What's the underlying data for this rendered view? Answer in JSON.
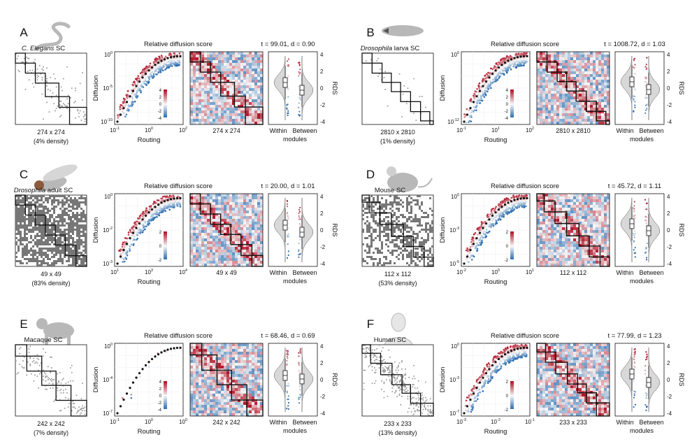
{
  "figure": {
    "row_title": "Relative diffusion score",
    "x_label": "Routing",
    "y_label": "Diffusion",
    "rds_label": "RDS",
    "within_label": "Within",
    "between_label": "Between",
    "modules_label": "modules"
  },
  "colors": {
    "red": "#b2182b",
    "blue": "#2166ac",
    "mid": "#f7f7f7",
    "ink": "#111111"
  },
  "chart_data": [
    {
      "letter": "A",
      "organism_icon": "worm-icon",
      "sc_title": "C. Elegans SC",
      "sc_italic": "C. Elegans",
      "sc_rest": " SC",
      "matrix_size": "274 x 274",
      "density": "(4% density)",
      "stats": "t = 99.01, d = 0.90",
      "type": "scatter",
      "x_ticks": [
        "10-1",
        "100",
        "102"
      ],
      "y_ticks": [
        "100",
        "10-5",
        "10-10"
      ],
      "cbar_ticks": [
        "4",
        "2",
        "0",
        "-2",
        "-4"
      ],
      "rds_ticks": [
        "4",
        "2",
        "0",
        "-2",
        "-4"
      ],
      "matrix_density": 0.04,
      "modules": [
        0.14,
        0.14,
        0.14,
        0.19,
        0.15,
        0.24
      ],
      "within_median": 0.8,
      "between_median": -0.3
    },
    {
      "letter": "B",
      "organism_icon": "larva-icon",
      "sc_title": "Drosophila larva SC",
      "sc_italic": "Drosophila",
      "sc_rest": " larva SC",
      "matrix_size": "2810 x 2810",
      "density": "(1% density)",
      "stats": "t = 1008.72, d = 1.03",
      "type": "scatter",
      "x_ticks": [
        "10-1",
        "101",
        "102"
      ],
      "y_ticks": [
        "100",
        "10-12"
      ],
      "cbar_ticks": [
        "4",
        "2",
        "0",
        "-2",
        "-4"
      ],
      "rds_ticks": [
        "4",
        "2",
        "0",
        "-2",
        "-4"
      ],
      "matrix_density": 0.01,
      "modules": [
        0.14,
        0.14,
        0.13,
        0.13,
        0.14,
        0.14,
        0.13,
        0.05
      ],
      "within_median": 0.9,
      "between_median": -0.2
    },
    {
      "letter": "C",
      "organism_icon": "fly-icon",
      "sc_title": "Drosophila adult SC",
      "sc_italic": "Drosophila",
      "sc_rest": " adult SC",
      "matrix_size": "49 x 49",
      "density": "(83% density)",
      "stats": "t = 20.00, d = 1.01",
      "type": "scatter",
      "x_ticks": [
        "101",
        "103",
        "104"
      ],
      "y_ticks": [
        "100",
        "10-2",
        "10-3"
      ],
      "cbar_ticks": [
        "2",
        "0",
        "-2"
      ],
      "rds_ticks": [
        "4",
        "2",
        "0",
        "-2",
        "-4"
      ],
      "matrix_density": 0.83,
      "modules": [
        0.14,
        0.14,
        0.14,
        0.14,
        0.14,
        0.15,
        0.15
      ],
      "within_median": 0.7,
      "between_median": -0.3
    },
    {
      "letter": "D",
      "organism_icon": "mouse-icon",
      "sc_title": "Mouse SC",
      "sc_italic": "",
      "sc_rest": "Mouse SC",
      "matrix_size": "112 x 112",
      "density": "(53% density)",
      "stats": "t = 45.72, d = 1.11",
      "type": "scatter",
      "x_ticks": [
        "10-2",
        "100",
        "101"
      ],
      "y_ticks": [
        "100",
        "10-3",
        "10-5"
      ],
      "cbar_ticks": [
        "2",
        "0",
        "-2"
      ],
      "rds_ticks": [
        "4",
        "2",
        "0",
        "-2",
        "-4"
      ],
      "matrix_density": 0.53,
      "modules": [
        0.1,
        0.15,
        0.16,
        0.17,
        0.14,
        0.15,
        0.13
      ],
      "within_median": 0.9,
      "between_median": -0.1
    },
    {
      "letter": "E",
      "organism_icon": "macaque-icon",
      "sc_title": "Macaque SC",
      "sc_italic": "",
      "sc_rest": "Macaque SC",
      "matrix_size": "242 x 242",
      "density": "(7% density)",
      "stats": "t = 68.46, d = 0.69",
      "type": "scatter",
      "x_ticks": [
        "10-1",
        "100",
        "100"
      ],
      "y_ticks": [
        "100",
        "10-4",
        "10-7"
      ],
      "cbar_ticks": [
        "4",
        "2",
        "0",
        "-2",
        "-4"
      ],
      "rds_ticks": [
        "4",
        "2",
        "0",
        "-2",
        "-4"
      ],
      "matrix_density": 0.07,
      "modules": [
        0.16,
        0.21,
        0.2,
        0.21,
        0.22
      ],
      "within_median": 0.6,
      "between_median": 0.1
    },
    {
      "letter": "F",
      "organism_icon": "human-icon",
      "sc_title": "Human SC",
      "sc_italic": "",
      "sc_rest": "Human SC",
      "matrix_size": "233 x 233",
      "density": "(13% density)",
      "stats": "t = 77.99, d = 1.23",
      "type": "scatter",
      "x_ticks": [
        "10-3",
        "10-2",
        "10-1"
      ],
      "y_ticks": [
        "100",
        "10-3",
        "10-7"
      ],
      "cbar_ticks": [
        "2",
        "0",
        "-2"
      ],
      "rds_ticks": [
        "4",
        "2",
        "0",
        "-2",
        "-4"
      ],
      "matrix_density": 0.13,
      "modules": [
        0.12,
        0.14,
        0.16,
        0.14,
        0.12,
        0.14,
        0.18
      ],
      "within_median": 0.8,
      "between_median": -0.4
    }
  ]
}
